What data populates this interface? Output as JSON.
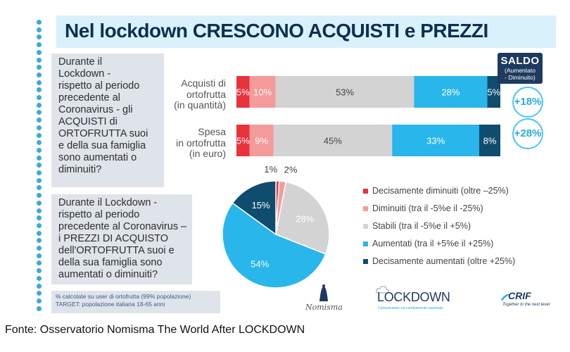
{
  "title": "Nel lockdown CRESCONO ACQUISTI e PREZZI",
  "question1": [
    "Durante il",
    "Lockdown -",
    "rispetto al periodo",
    "precedente al",
    "Coronavirus - gli",
    "ACQUISTI di",
    "ORTOFRUTTA suoi",
    "e della sua famiglia",
    "sono aumentati o",
    "diminuiti?"
  ],
  "question2": [
    "Durante il Lockdown -",
    "rispetto al periodo",
    "precedente al Coronavirus –",
    "i PREZZI DI ACQUISTO",
    "dell'ORTOFRUTTA suoi e",
    "della sua famiglia sono",
    "aumentati o diminuiti?"
  ],
  "saldo": {
    "title": "SALDO",
    "sub1": "(Aumentato",
    "sub2": "- Diminuito)"
  },
  "note": [
    "% calcolate su user di ortofrutta (99% popolazione)",
    "TARGET: popolazione italiana 18-65 anni"
  ],
  "logos": {
    "lockdown": "LOCKDOWN",
    "lockdown_sub": "Comunicando sul cambiamento nazionale",
    "nomisma": "Nomisma",
    "crif": "CRIF",
    "crif_sub": "Together to the next level"
  },
  "source": "Fonte: Osservatorio Nomisma The World After LOCKDOWN",
  "colors": [
    "#e8323c",
    "#f59a9a",
    "#d3d3d3",
    "#29b6ea",
    "#0f4c6e"
  ],
  "chart_data": [
    {
      "type": "bar",
      "orientation": "horizontal-stacked",
      "categories": [
        [
          "Acquisti di",
          "ortofrutta",
          "(in quantità)"
        ],
        [
          "Spesa",
          "in ortofrutta",
          "(in euro)"
        ]
      ],
      "series": [
        {
          "name": "Decisamente diminuiti (oltre –25%)",
          "values": [
            5,
            5
          ],
          "labels": [
            "5%",
            "5%"
          ]
        },
        {
          "name": "Diminuiti (tra il -5%e il -25%)",
          "values": [
            10,
            9
          ],
          "labels": [
            "10%",
            "9%"
          ]
        },
        {
          "name": "Stabili (tra il -5%e il +5%)",
          "values": [
            53,
            45
          ],
          "labels": [
            "53%",
            "45%"
          ]
        },
        {
          "name": "Aumentati (tra il +5%e il +25%)",
          "values": [
            28,
            33
          ],
          "labels": [
            "28%",
            "33%"
          ]
        },
        {
          "name": "Decisamente aumentati (oltre +25%)",
          "values": [
            5,
            8
          ],
          "labels": [
            "5%",
            "8%"
          ]
        }
      ],
      "saldo": [
        "+18%",
        "+28%"
      ]
    },
    {
      "type": "pie",
      "labels": [
        "Decisamente diminuiti (oltre –25%)",
        "Diminuiti (tra il -5%e il -25%)",
        "Stabili (tra il -5%e il +5%)",
        "Aumentati (tra il +5%e il +25%)",
        "Decisamente aumentati (oltre +25%)"
      ],
      "values": [
        1,
        2,
        28,
        54,
        15
      ],
      "value_labels": [
        "1%",
        "2%",
        "28%",
        "54%",
        "15%"
      ]
    }
  ]
}
